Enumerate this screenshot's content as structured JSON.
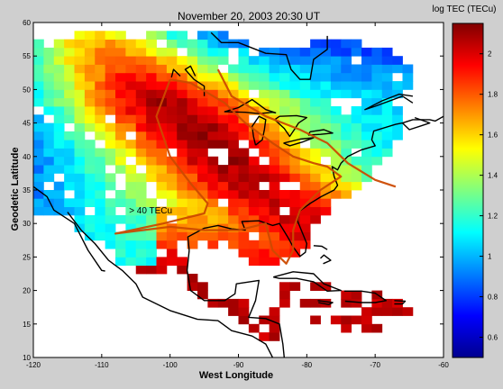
{
  "chart_data": {
    "type": "heatmap",
    "title": "November 20,  2003  20:30 UT",
    "xlabel": "West Longitude",
    "ylabel": "Geodetic Latitude",
    "xlim": [
      -120,
      -60
    ],
    "ylim": [
      10,
      60
    ],
    "x_ticks": [
      -120,
      -110,
      -100,
      -90,
      -80,
      -70,
      -60
    ],
    "x_tick_labels": [
      "-120",
      "-110",
      "-100",
      "-90",
      "-80",
      "-70",
      "-60"
    ],
    "y_ticks": [
      10,
      15,
      20,
      25,
      30,
      35,
      40,
      45,
      50,
      55,
      60
    ],
    "y_tick_labels": [
      "10",
      "15",
      "20",
      "25",
      "30",
      "35",
      "40",
      "45",
      "50",
      "55",
      "60"
    ],
    "colorbar": {
      "label": "log TEC (TECu)",
      "range": [
        0.5,
        2.15
      ],
      "ticks": [
        0.6,
        0.8,
        1,
        1.2,
        1.4,
        1.6,
        1.8,
        2
      ],
      "tick_labels": [
        "0.6",
        "0.8",
        "1",
        "1.2",
        "1.4",
        "1.6",
        "1.8",
        "2"
      ],
      "colormap": "jet"
    },
    "annotation": {
      "text": "> 40 TECu",
      "lon": -106,
      "lat": 31.5
    },
    "contour_40_tecu": [
      [
        -100,
        51.5
      ],
      [
        -97,
        51
      ],
      [
        -92,
        48
      ],
      [
        -89,
        45
      ],
      [
        -85,
        42
      ],
      [
        -82,
        40
      ],
      [
        -79,
        39
      ],
      [
        -77,
        38.5
      ],
      [
        -75,
        37
      ],
      [
        -78,
        35
      ],
      [
        -81,
        32
      ],
      [
        -82,
        29
      ],
      [
        -82,
        26
      ],
      [
        -83,
        24
      ],
      [
        -85,
        26
      ],
      [
        -86,
        30
      ],
      [
        -90,
        29
      ],
      [
        -95,
        29
      ],
      [
        -100,
        29.5
      ],
      [
        -104,
        29
      ],
      [
        -108,
        28.5
      ],
      [
        -101,
        30
      ],
      [
        -95,
        31.5
      ],
      [
        -94.5,
        33
      ],
      [
        -97,
        36
      ],
      [
        -100,
        40
      ],
      [
        -102,
        46
      ],
      [
        -100,
        51.5
      ]
    ],
    "contour_east_line": [
      [
        -93,
        53
      ],
      [
        -91,
        49
      ],
      [
        -86,
        46
      ],
      [
        -81,
        44
      ],
      [
        -77,
        42
      ],
      [
        -74,
        39
      ],
      [
        -70,
        36.5
      ],
      [
        -67,
        35.5
      ]
    ]
  }
}
